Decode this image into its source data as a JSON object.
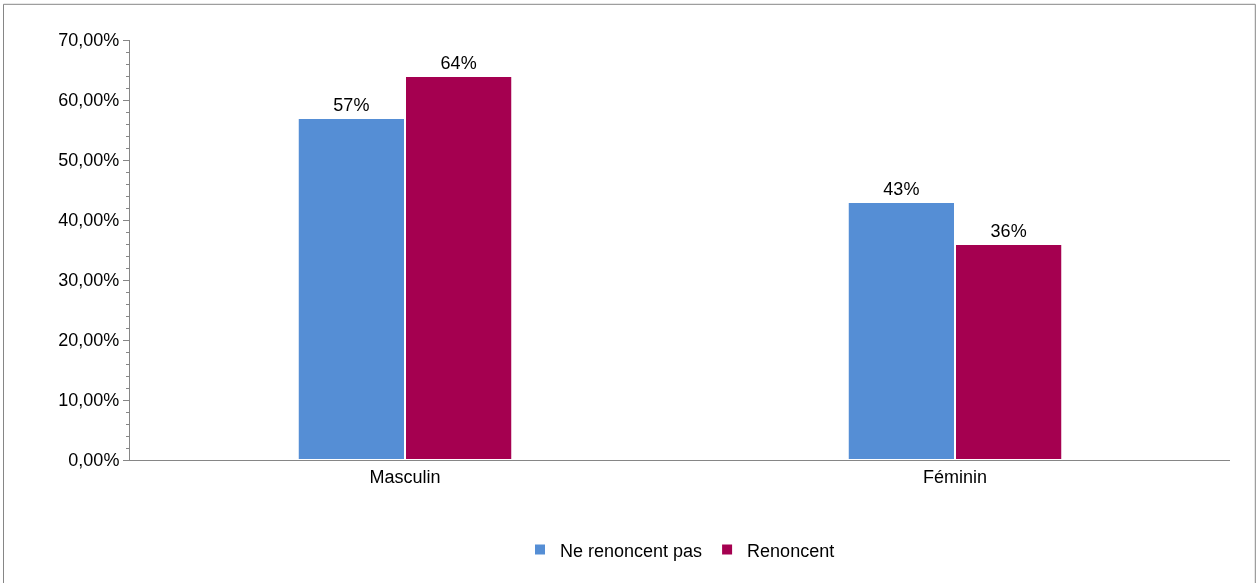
{
  "chart_data": {
    "type": "bar",
    "categories": [
      "Masculin",
      "Féminin"
    ],
    "series": [
      {
        "name": "Ne renoncent pas",
        "color": "#558ed5",
        "values": [
          57,
          43
        ],
        "value_labels": [
          "57%",
          "43%"
        ]
      },
      {
        "name": "Renoncent",
        "color": "#a50050",
        "values": [
          64,
          36
        ],
        "value_labels": [
          "64%",
          "36%"
        ]
      }
    ],
    "ylim": [
      0,
      70
    ],
    "yticks": [
      {
        "value": 0,
        "label": "0,00%"
      },
      {
        "value": 10,
        "label": "10,00%"
      },
      {
        "value": 20,
        "label": "20,00%"
      },
      {
        "value": 30,
        "label": "30,00%"
      },
      {
        "value": 40,
        "label": "40,00%"
      },
      {
        "value": 50,
        "label": "50,00%"
      },
      {
        "value": 60,
        "label": "60,00%"
      },
      {
        "value": 70,
        "label": "70,00%"
      }
    ],
    "legend": "bottom"
  }
}
